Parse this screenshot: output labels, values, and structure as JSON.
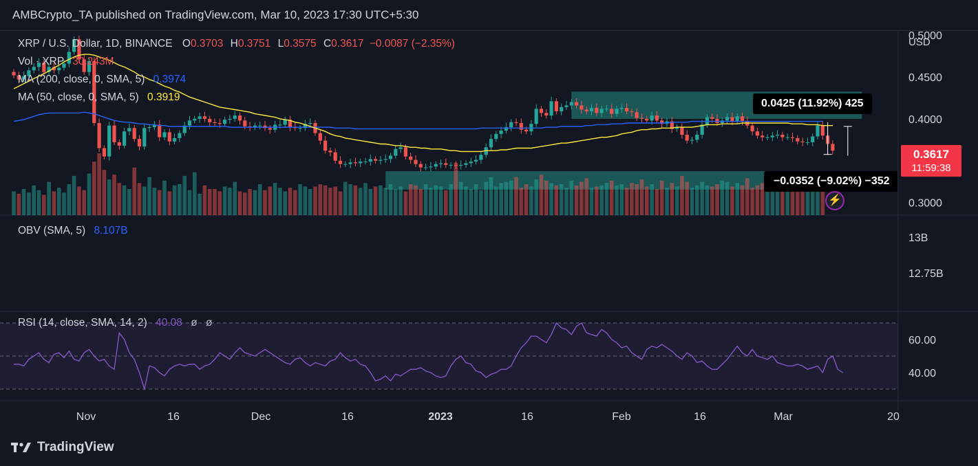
{
  "header": "AMBCrypto_TA published on TradingView.com, Mar 10, 2023 17:30 UTC+5:30",
  "symbol_line": {
    "name": "XRP / U.S. Dollar, 1D, BINANCE",
    "o_label": "O",
    "o": "0.3703",
    "h_label": "H",
    "h": "0.3751",
    "l_label": "L",
    "l": "0.3575",
    "c_label": "C",
    "c": "0.3617",
    "change": "−0.0087 (−2.35%)"
  },
  "vol_line": {
    "label": "Vol · XRP",
    "value": "30.243M"
  },
  "ma200_line": {
    "label": "MA (200, close, 0, SMA, 5)",
    "value": "0.3974"
  },
  "ma50_line": {
    "label": "MA (50, close, 0, SMA, 5)",
    "value": "0.3919"
  },
  "obv_line": {
    "label": "OBV (SMA, 5)",
    "value": "8.107B"
  },
  "rsi_line": {
    "label": "RSI (14, close, SMA, 14, 2)",
    "value": "40.08",
    "extra1": "ø",
    "extra2": "ø"
  },
  "currency": "USD",
  "price_tag": {
    "value": "0.3617",
    "countdown": "11:59:38"
  },
  "measure_up": "0.0425 (11.92%) 425",
  "measure_down": "−0.0352 (−9.02%) −352",
  "footer_brand": "TradingView",
  "colors": {
    "up": "#26a69a",
    "down": "#ef5350",
    "ma200": "#2962ff",
    "ma50": "#ffeb3b",
    "rsi": "#7e57c2",
    "zone": "#26a69a"
  },
  "chart_data": [
    {
      "type": "candlestick",
      "title": "XRP / U.S. Dollar, 1D, BINANCE",
      "ylim": [
        0.285,
        0.505
      ],
      "yticks": [
        "0.5000",
        "0.4500",
        "0.4000",
        "0.3000"
      ],
      "xticks": [
        "Nov",
        "16",
        "Dec",
        "16",
        "2023",
        "16",
        "Feb",
        "16",
        "Mar",
        "20"
      ],
      "close": [
        0.452,
        0.447,
        0.451,
        0.458,
        0.462,
        0.467,
        0.456,
        0.462,
        0.458,
        0.461,
        0.466,
        0.48,
        0.495,
        0.471,
        0.456,
        0.469,
        0.395,
        0.365,
        0.355,
        0.392,
        0.372,
        0.368,
        0.385,
        0.389,
        0.376,
        0.367,
        0.389,
        0.39,
        0.393,
        0.378,
        0.384,
        0.373,
        0.377,
        0.383,
        0.392,
        0.398,
        0.4,
        0.403,
        0.4,
        0.396,
        0.395,
        0.394,
        0.399,
        0.4,
        0.404,
        0.398,
        0.391,
        0.39,
        0.392,
        0.392,
        0.389,
        0.387,
        0.393,
        0.393,
        0.399,
        0.39,
        0.389,
        0.389,
        0.394,
        0.395,
        0.383,
        0.374,
        0.362,
        0.36,
        0.35,
        0.346,
        0.346,
        0.348,
        0.347,
        0.349,
        0.349,
        0.352,
        0.35,
        0.351,
        0.352,
        0.356,
        0.364,
        0.366,
        0.355,
        0.351,
        0.346,
        0.342,
        0.342,
        0.343,
        0.346,
        0.347,
        0.345,
        0.345,
        0.344,
        0.345,
        0.347,
        0.349,
        0.351,
        0.357,
        0.366,
        0.376,
        0.382,
        0.386,
        0.39,
        0.396,
        0.395,
        0.387,
        0.385,
        0.394,
        0.412,
        0.407,
        0.404,
        0.421,
        0.409,
        0.414,
        0.416,
        0.42,
        0.416,
        0.411,
        0.409,
        0.413,
        0.407,
        0.412,
        0.412,
        0.406,
        0.412,
        0.413,
        0.409,
        0.408,
        0.401,
        0.4,
        0.398,
        0.404,
        0.398,
        0.394,
        0.397,
        0.388,
        0.39,
        0.381,
        0.374,
        0.375,
        0.381,
        0.393,
        0.402,
        0.4,
        0.395,
        0.398,
        0.402,
        0.397,
        0.403,
        0.397,
        0.392,
        0.385,
        0.38,
        0.378,
        0.378,
        0.38,
        0.381,
        0.378,
        0.378,
        0.377,
        0.373,
        0.372,
        0.372,
        0.379,
        0.392,
        0.38,
        0.37,
        0.362
      ],
      "ma200": [
        0.397,
        0.398,
        0.399,
        0.401,
        0.403,
        0.405,
        0.406,
        0.407,
        0.407,
        0.407,
        0.407,
        0.407,
        0.407,
        0.407,
        0.408,
        0.407,
        0.406,
        0.404,
        0.402,
        0.4,
        0.398,
        0.397,
        0.396,
        0.396,
        0.395,
        0.394,
        0.394,
        0.393,
        0.393,
        0.392,
        0.392,
        0.391,
        0.391,
        0.391,
        0.391,
        0.391,
        0.391,
        0.391,
        0.391,
        0.391,
        0.391,
        0.391,
        0.391,
        0.39,
        0.39,
        0.39,
        0.39,
        0.39,
        0.39,
        0.39,
        0.39,
        0.39,
        0.39,
        0.39,
        0.39,
        0.39,
        0.39,
        0.39,
        0.39,
        0.39,
        0.39,
        0.39,
        0.39,
        0.39,
        0.389,
        0.389,
        0.389,
        0.389,
        0.388,
        0.388,
        0.388,
        0.388,
        0.388,
        0.388,
        0.388,
        0.388,
        0.388,
        0.388,
        0.388,
        0.388,
        0.388,
        0.388,
        0.388,
        0.388,
        0.388,
        0.388,
        0.388,
        0.388,
        0.388,
        0.388,
        0.388,
        0.388,
        0.388,
        0.389,
        0.389,
        0.389,
        0.389,
        0.389,
        0.389,
        0.389,
        0.389,
        0.389,
        0.389,
        0.389,
        0.389,
        0.389,
        0.39,
        0.39,
        0.39,
        0.391,
        0.391,
        0.391,
        0.391,
        0.391,
        0.392,
        0.392,
        0.393,
        0.393,
        0.393,
        0.394,
        0.394,
        0.394,
        0.395,
        0.395,
        0.395,
        0.395,
        0.395,
        0.395,
        0.395,
        0.395,
        0.395,
        0.396,
        0.396,
        0.396,
        0.396,
        0.397,
        0.397,
        0.397,
        0.397,
        0.397,
        0.397,
        0.397,
        0.397,
        0.397,
        0.397,
        0.397,
        0.397,
        0.397,
        0.397,
        0.397,
        0.397,
        0.397,
        0.397,
        0.397,
        0.397,
        0.397,
        0.397,
        0.397,
        0.397,
        0.397,
        0.397,
        0.397
      ],
      "ma50": [
        0.436,
        0.439,
        0.442,
        0.445,
        0.448,
        0.451,
        0.454,
        0.457,
        0.461,
        0.464,
        0.468,
        0.471,
        0.474,
        0.476,
        0.477,
        0.477,
        0.476,
        0.474,
        0.472,
        0.47,
        0.467,
        0.464,
        0.462,
        0.459,
        0.456,
        0.452,
        0.45,
        0.447,
        0.445,
        0.442,
        0.439,
        0.437,
        0.434,
        0.432,
        0.429,
        0.426,
        0.424,
        0.422,
        0.42,
        0.418,
        0.416,
        0.414,
        0.413,
        0.412,
        0.411,
        0.41,
        0.409,
        0.408,
        0.406,
        0.405,
        0.404,
        0.403,
        0.402,
        0.4,
        0.399,
        0.398,
        0.396,
        0.395,
        0.393,
        0.391,
        0.389,
        0.387,
        0.385,
        0.382,
        0.38,
        0.379,
        0.377,
        0.376,
        0.375,
        0.374,
        0.373,
        0.372,
        0.371,
        0.37,
        0.37,
        0.369,
        0.368,
        0.368,
        0.367,
        0.366,
        0.366,
        0.365,
        0.365,
        0.364,
        0.364,
        0.364,
        0.363,
        0.362,
        0.362,
        0.361,
        0.361,
        0.361,
        0.361,
        0.361,
        0.362,
        0.362,
        0.362,
        0.363,
        0.363,
        0.364,
        0.365,
        0.365,
        0.365,
        0.365,
        0.366,
        0.367,
        0.368,
        0.369,
        0.37,
        0.371,
        0.371,
        0.372,
        0.373,
        0.374,
        0.375,
        0.376,
        0.377,
        0.378,
        0.378,
        0.379,
        0.38,
        0.382,
        0.383,
        0.384,
        0.386,
        0.387,
        0.387,
        0.388,
        0.388,
        0.389,
        0.389,
        0.389,
        0.39,
        0.39,
        0.39,
        0.39,
        0.391,
        0.392,
        0.393,
        0.393,
        0.393,
        0.394,
        0.394,
        0.394,
        0.394,
        0.395,
        0.395,
        0.395,
        0.395,
        0.395,
        0.395,
        0.395,
        0.395,
        0.395,
        0.395,
        0.394,
        0.394,
        0.394,
        0.393,
        0.393,
        0.393,
        0.392,
        0.392,
        0.392
      ],
      "volume_m": [
        20,
        18,
        22,
        19,
        25,
        21,
        17,
        28,
        20,
        23,
        19,
        26,
        33,
        24,
        21,
        35,
        45,
        52,
        38,
        30,
        34,
        27,
        25,
        22,
        40,
        27,
        24,
        32,
        23,
        21,
        29,
        20,
        25,
        26,
        33,
        21,
        36,
        18,
        25,
        22,
        22,
        20,
        24,
        23,
        28,
        20,
        19,
        22,
        21,
        26,
        21,
        24,
        27,
        23,
        20,
        23,
        21,
        26,
        24,
        22,
        24,
        26,
        25,
        23,
        24,
        20,
        28,
        26,
        25,
        23,
        27,
        22,
        24,
        25,
        23,
        26,
        22,
        24,
        20,
        26,
        25,
        22,
        26,
        23,
        25,
        24,
        21,
        26,
        44,
        28,
        24,
        22,
        26,
        21,
        28,
        32,
        24,
        27,
        28,
        29,
        32,
        23,
        26,
        24,
        30,
        34,
        29,
        27,
        25,
        26,
        23,
        29,
        25,
        28,
        31,
        23,
        24,
        25,
        27,
        29,
        25,
        26,
        23,
        27,
        26,
        30,
        24,
        26,
        22,
        29,
        23,
        27,
        24,
        33,
        28,
        23,
        25,
        28,
        25,
        24,
        26,
        29,
        28,
        24,
        27,
        25,
        31,
        23,
        25,
        27,
        24,
        25,
        26,
        23,
        26,
        27,
        29,
        30,
        28,
        27,
        33,
        30
      ],
      "zones": [
        {
          "x_start": 111,
          "x_end": 168,
          "y_low": 0.4,
          "y_high": 0.4325
        },
        {
          "x_start": 74,
          "x_end": 168,
          "y_low": 0.3155,
          "y_high": 0.3375
        }
      ]
    },
    {
      "type": "line",
      "title": "OBV (SMA, 5)",
      "yticks": [
        "13B",
        "12.75B"
      ],
      "values": []
    },
    {
      "type": "line",
      "title": "RSI (14, close, SMA, 14, 2)",
      "ylim": [
        23,
        77
      ],
      "yticks": [
        "60.00",
        "40.00"
      ],
      "bands": [
        30,
        50,
        70
      ],
      "values": [
        45,
        45,
        44,
        48,
        50,
        52,
        48,
        46,
        51,
        52,
        49,
        53,
        48,
        47,
        52,
        54,
        50,
        47,
        48,
        44,
        42,
        64,
        60,
        52,
        48,
        40,
        30,
        44,
        43,
        40,
        38,
        42,
        44,
        45,
        44,
        45,
        45,
        42,
        44,
        45,
        48,
        52,
        50,
        48,
        52,
        55,
        52,
        51,
        50,
        52,
        54,
        52,
        50,
        48,
        46,
        45,
        48,
        49,
        46,
        44,
        46,
        45,
        44,
        47,
        48,
        52,
        49,
        47,
        48,
        45,
        44,
        40,
        35,
        36,
        38,
        35,
        39,
        38,
        40,
        42,
        42,
        43,
        41,
        40,
        38,
        37,
        38,
        44,
        48,
        50,
        46,
        45,
        41,
        40,
        37,
        39,
        40,
        42,
        42,
        44,
        50,
        55,
        58,
        62,
        62,
        60,
        58,
        63,
        70,
        67,
        66,
        63,
        68,
        70,
        64,
        63,
        62,
        66,
        64,
        60,
        58,
        55,
        56,
        52,
        50,
        48,
        54,
        56,
        55,
        57,
        55,
        53,
        50,
        48,
        52,
        50,
        46,
        47,
        44,
        42,
        42,
        45,
        48,
        52,
        56,
        52,
        50,
        54,
        50,
        49,
        48,
        50,
        46,
        45,
        44,
        44,
        45,
        44,
        42,
        43,
        44,
        40,
        48,
        50,
        42,
        40
      ]
    }
  ]
}
